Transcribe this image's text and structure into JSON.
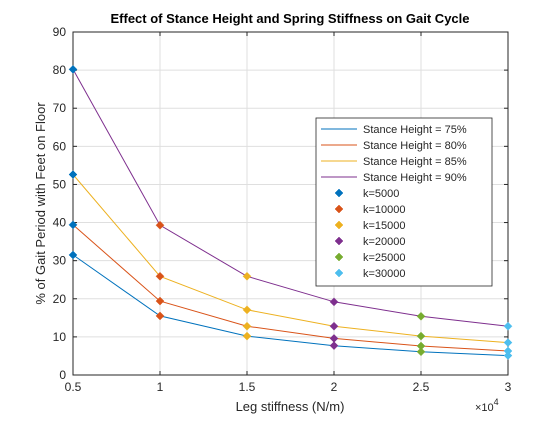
{
  "chart_data": {
    "type": "line",
    "title": "Effect of Stance Height and Spring Stiffness on Gait Cycle",
    "xlabel": "Leg stiffness (N/m)",
    "ylabel": "% of Gait Period with Feet on Floor",
    "x_exponent_label": "×10",
    "x_exponent_power": "4",
    "x": [
      5000,
      10000,
      15000,
      20000,
      25000,
      30000
    ],
    "xlim": [
      5000,
      30000
    ],
    "ylim": [
      0,
      90
    ],
    "x_ticks": [
      5000,
      10000,
      15000,
      20000,
      25000,
      30000
    ],
    "x_tick_labels": [
      "0.5",
      "1",
      "1.5",
      "2",
      "2.5",
      "3"
    ],
    "y_ticks": [
      0,
      10,
      20,
      30,
      40,
      50,
      60,
      70,
      80,
      90
    ],
    "y_tick_labels": [
      "0",
      "10",
      "20",
      "30",
      "40",
      "50",
      "60",
      "70",
      "80",
      "90"
    ],
    "grid": true,
    "legend_location": "right",
    "series": [
      {
        "name": "Stance Height = 75%",
        "color": "#0072BD",
        "values": [
          31.5,
          15.5,
          10.2,
          7.7,
          6.1,
          5.1
        ]
      },
      {
        "name": "Stance Height = 80%",
        "color": "#D95319",
        "values": [
          39.4,
          19.4,
          12.8,
          9.6,
          7.6,
          6.3
        ]
      },
      {
        "name": "Stance Height = 85%",
        "color": "#EDB120",
        "values": [
          52.6,
          25.9,
          17.1,
          12.8,
          10.2,
          8.5
        ]
      },
      {
        "name": "Stance Height = 90%",
        "color": "#7E2F8E",
        "values": [
          80.2,
          39.3,
          25.9,
          19.2,
          15.4,
          12.8
        ]
      }
    ],
    "marker_series": [
      {
        "name": "k=5000",
        "color": "#0072BD",
        "x": 5000,
        "values": [
          31.5,
          39.4,
          52.6,
          80.2
        ]
      },
      {
        "name": "k=10000",
        "color": "#D95319",
        "x": 10000,
        "values": [
          15.5,
          19.4,
          25.9,
          39.3
        ]
      },
      {
        "name": "k=15000",
        "color": "#EDB120",
        "x": 15000,
        "values": [
          10.2,
          12.8,
          17.1,
          25.9
        ]
      },
      {
        "name": "k=20000",
        "color": "#7E2F8E",
        "x": 20000,
        "values": [
          7.7,
          9.6,
          12.8,
          19.2
        ]
      },
      {
        "name": "k=25000",
        "color": "#77AC30",
        "x": 25000,
        "values": [
          6.1,
          7.6,
          10.2,
          15.4
        ]
      },
      {
        "name": "k=30000",
        "color": "#4DBEEE",
        "x": 30000,
        "values": [
          5.1,
          6.3,
          8.5,
          12.8
        ]
      }
    ]
  }
}
